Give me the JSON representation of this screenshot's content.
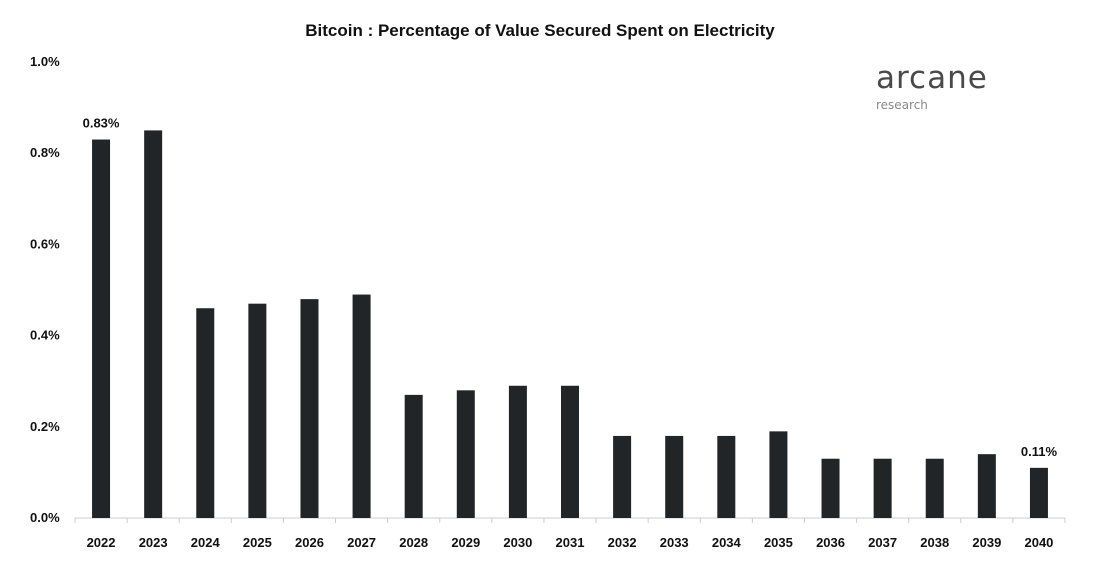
{
  "chart_data": {
    "type": "bar",
    "title": "Bitcoin : Percentage of Value Secured Spent on Electricity",
    "xlabel": "",
    "ylabel": "",
    "categories": [
      "2022",
      "2023",
      "2024",
      "2025",
      "2026",
      "2027",
      "2028",
      "2029",
      "2030",
      "2031",
      "2032",
      "2033",
      "2034",
      "2035",
      "2036",
      "2037",
      "2038",
      "2039",
      "2040"
    ],
    "values": [
      0.83,
      0.85,
      0.46,
      0.47,
      0.48,
      0.49,
      0.27,
      0.28,
      0.29,
      0.29,
      0.18,
      0.18,
      0.18,
      0.19,
      0.13,
      0.13,
      0.13,
      0.14,
      0.11
    ],
    "ylim": [
      0,
      1.0
    ],
    "yticks": [
      "0.0%",
      "0.2%",
      "0.4%",
      "0.6%",
      "0.8%",
      "1.0%"
    ],
    "data_labels": [
      {
        "category": "2022",
        "text": "0.83%"
      },
      {
        "category": "2040",
        "text": "0.11%"
      }
    ],
    "grid": false,
    "bar_color": "#222528"
  },
  "logo": {
    "name": "arcane",
    "tagline": "research"
  }
}
